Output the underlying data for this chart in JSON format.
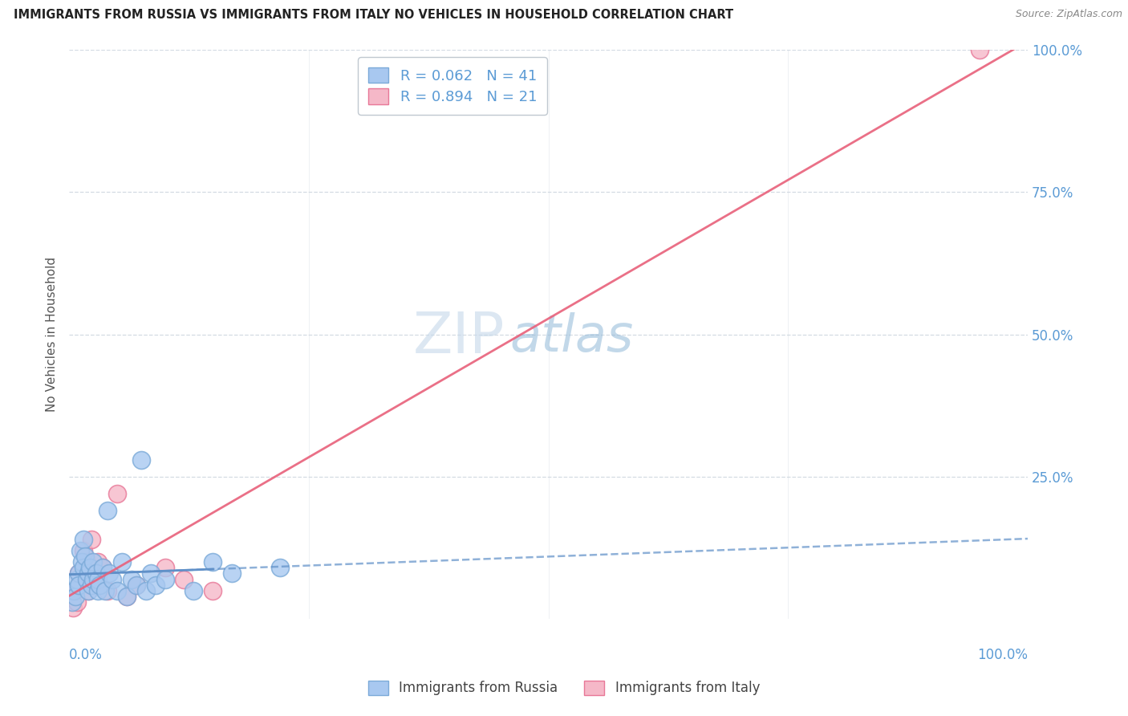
{
  "title": "IMMIGRANTS FROM RUSSIA VS IMMIGRANTS FROM ITALY NO VEHICLES IN HOUSEHOLD CORRELATION CHART",
  "source": "Source: ZipAtlas.com",
  "ylabel": "No Vehicles in Household",
  "legend_r_russia": "R = 0.062",
  "legend_n_russia": "N = 41",
  "legend_r_italy": "R = 0.894",
  "legend_n_italy": "N = 21",
  "legend_label_russia": "Immigrants from Russia",
  "legend_label_italy": "Immigrants from Italy",
  "russia_color": "#a8c8f0",
  "italy_color": "#f5b8c8",
  "russia_edge_color": "#7baad8",
  "italy_edge_color": "#e87898",
  "russia_line_color": "#6090c8",
  "italy_line_color": "#e8607a",
  "watermark_zip_color": "#c8d8e8",
  "watermark_atlas_color": "#88b8d8",
  "background_color": "#ffffff",
  "grid_color": "#d0d8e0",
  "title_color": "#333333",
  "axis_label_color": "#5b9bd5",
  "russia_x": [
    0.3,
    0.5,
    0.7,
    0.8,
    1.0,
    1.0,
    1.2,
    1.3,
    1.5,
    1.5,
    1.7,
    1.8,
    2.0,
    2.0,
    2.2,
    2.3,
    2.5,
    2.5,
    2.8,
    3.0,
    3.0,
    3.2,
    3.5,
    3.8,
    4.0,
    4.2,
    4.5,
    5.0,
    5.5,
    6.0,
    6.5,
    7.0,
    7.5,
    8.0,
    8.5,
    9.0,
    10.0,
    13.0,
    15.0,
    17.0,
    22.0
  ],
  "russia_y": [
    3.0,
    5.0,
    4.0,
    7.0,
    8.0,
    6.0,
    12.0,
    10.0,
    9.0,
    14.0,
    11.0,
    7.0,
    5.0,
    8.0,
    9.0,
    6.0,
    10.0,
    7.0,
    8.0,
    5.0,
    7.0,
    6.0,
    9.0,
    5.0,
    19.0,
    8.0,
    7.0,
    5.0,
    10.0,
    4.0,
    7.0,
    6.0,
    28.0,
    5.0,
    8.0,
    6.0,
    7.0,
    5.0,
    10.0,
    8.0,
    9.0
  ],
  "italy_x": [
    0.4,
    0.6,
    0.8,
    1.0,
    1.2,
    1.5,
    1.8,
    2.0,
    2.3,
    2.5,
    2.8,
    3.0,
    3.5,
    4.0,
    5.0,
    6.0,
    7.0,
    10.0,
    12.0,
    15.0,
    95.0
  ],
  "italy_y": [
    2.0,
    5.0,
    3.0,
    8.0,
    7.0,
    12.0,
    10.0,
    5.0,
    14.0,
    8.0,
    7.0,
    10.0,
    9.0,
    5.0,
    22.0,
    4.0,
    6.0,
    9.0,
    7.0,
    5.0,
    100.0
  ],
  "xlim": [
    0,
    100
  ],
  "ylim": [
    0,
    100
  ],
  "figsize": [
    14.06,
    8.92
  ],
  "dpi": 100
}
